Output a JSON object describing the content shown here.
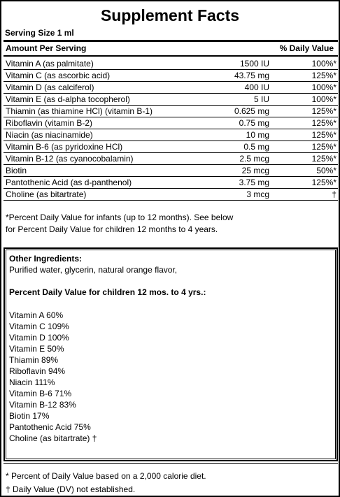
{
  "title": "Supplement Facts",
  "serving_size": "Serving Size 1 ml",
  "header": {
    "amount": "Amount Per Serving",
    "daily_value": "% Daily Value"
  },
  "nutrients": [
    {
      "name": "Vitamin A (as palmitate)",
      "amount": "1500 IU",
      "dv": "100%*"
    },
    {
      "name": "Vitamin C (as ascorbic acid)",
      "amount": "43.75 mg",
      "dv": "125%*"
    },
    {
      "name": "Vitamin D (as calciferol)",
      "amount": "400 IU",
      "dv": "100%*"
    },
    {
      "name": "Vitamin E (as d-alpha tocopherol)",
      "amount": "5 IU",
      "dv": "100%*"
    },
    {
      "name": "Thiamin (as thiamine HCl) (vitamin B-1)",
      "amount": "0.625 mg",
      "dv": "125%*"
    },
    {
      "name": "Riboflavin (vitamin B-2)",
      "amount": "0.75 mg",
      "dv": "125%*"
    },
    {
      "name": "Niacin (as niacinamide)",
      "amount": "10 mg",
      "dv": "125%*"
    },
    {
      "name": "Vitamin B-6 (as pyridoxine HCl)",
      "amount": "0.5 mg",
      "dv": "125%*"
    },
    {
      "name": "Vitamin B-12 (as cyanocobalamin)",
      "amount": "2.5 mcg",
      "dv": "125%*"
    },
    {
      "name": "Biotin",
      "amount": "25 mcg",
      "dv": "50%*"
    },
    {
      "name": "Pantothenic Acid (as d-panthenol)",
      "amount": "3.75 mg",
      "dv": "125%*"
    },
    {
      "name": "Choline (as bitartrate)",
      "amount": "3 mcg",
      "dv": "†"
    }
  ],
  "infant_note": "*Percent Daily Value for infants (up to 12 months). See below for Percent Daily Value for children 12 months to 4 years.",
  "other_ingredients": {
    "heading": "Other Ingredients:",
    "text": "Purified water, glycerin, natural orange flavor,"
  },
  "children_dv": {
    "heading": "Percent Daily Value for children 12 mos. to 4 yrs.:",
    "items": [
      "Vitamin A 60%",
      "Vitamin C 109%",
      "Vitamin D 100%",
      "Vitamin E 50%",
      "Thiamin 89%",
      "Riboflavin 94%",
      "Niacin 111%",
      "Vitamin B-6 71%",
      "Vitamin B-12 83%",
      "Biotin 17%",
      "Pantothenic Acid 75%",
      "Choline (as bitartrate) †"
    ]
  },
  "footnotes": [
    "* Percent of Daily Value based on a 2,000 calorie diet.",
    "† Daily Value (DV) not established."
  ]
}
